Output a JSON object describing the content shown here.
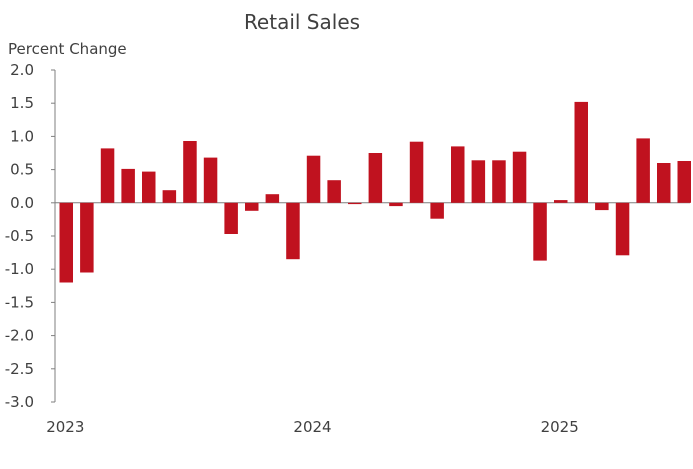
{
  "chart_data": {
    "type": "bar",
    "title": "Retail Sales",
    "ylabel": "Percent Change",
    "xlabel": "",
    "ylim": [
      -3.0,
      2.0
    ],
    "yticks": [
      "2.0",
      "1.5",
      "1.0",
      "0.5",
      "0.0",
      "-0.5",
      "-1.0",
      "-1.5",
      "-2.0",
      "-2.5",
      "-3.0"
    ],
    "ytick_values": [
      2.0,
      1.5,
      1.0,
      0.5,
      0.0,
      -0.5,
      -1.0,
      -1.5,
      -2.0,
      -2.5,
      -3.0
    ],
    "x_labels": [
      {
        "label": "2023",
        "index": 0
      },
      {
        "label": "2024",
        "index": 12
      },
      {
        "label": "2025",
        "index": 24
      }
    ],
    "grid": false,
    "bar_color": "#c0121f",
    "values": [
      -1.2,
      -1.05,
      0.82,
      0.51,
      0.47,
      0.19,
      0.93,
      0.68,
      -0.47,
      -0.12,
      0.13,
      -0.85,
      0.71,
      0.34,
      -0.02,
      0.75,
      -0.05,
      0.92,
      -0.24,
      0.85,
      0.64,
      0.64,
      0.77,
      -0.87,
      0.04,
      1.52,
      -0.11,
      -0.79,
      0.97,
      0.6,
      0.63
    ]
  }
}
